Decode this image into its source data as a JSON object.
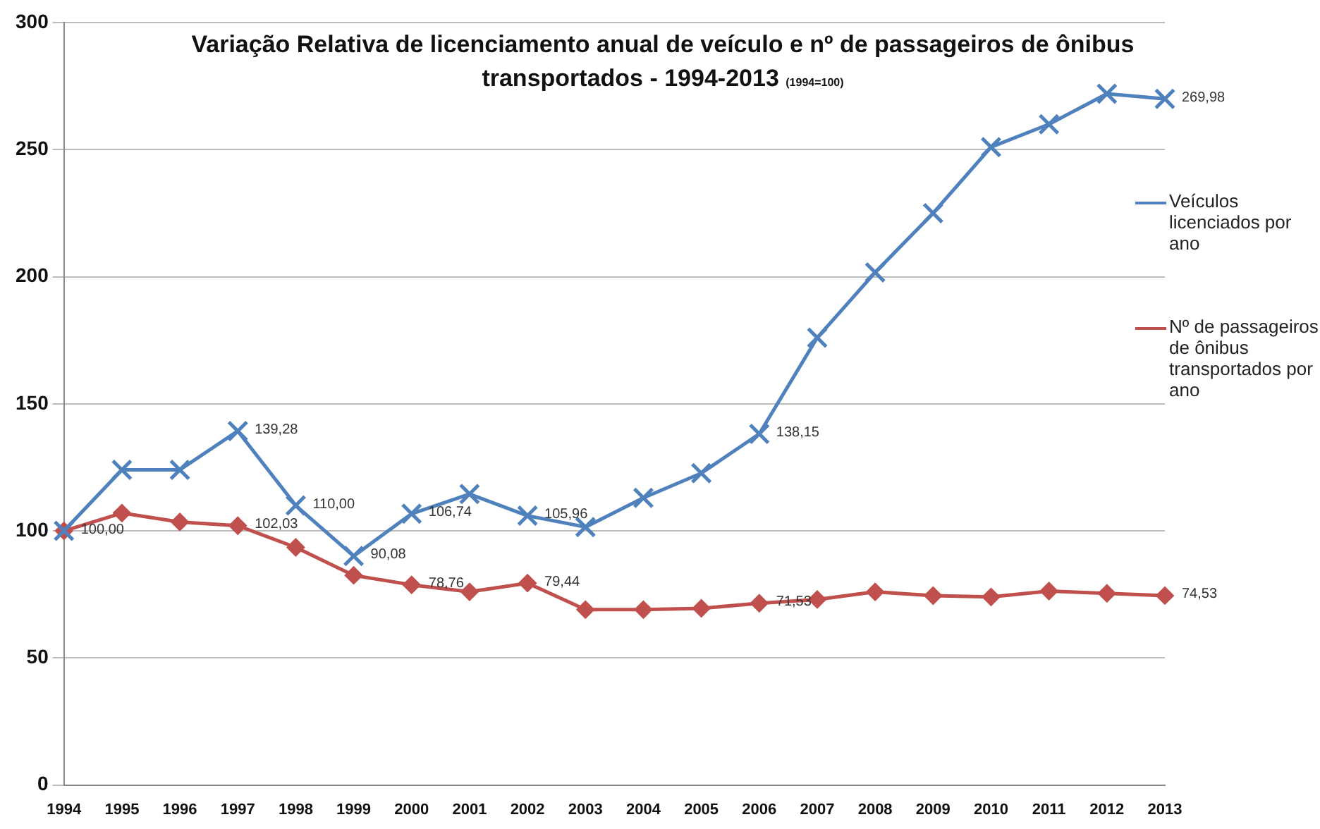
{
  "chart_data": {
    "type": "line",
    "title": "Variação Relativa de licenciamento anual de veículo e nº de passageiros de ônibus transportados - 1994-2013",
    "subtitle": "(1994=100)",
    "categories": [
      "1994",
      "1995",
      "1996",
      "1997",
      "1998",
      "1999",
      "2000",
      "2001",
      "2002",
      "2003",
      "2004",
      "2005",
      "2006",
      "2007",
      "2008",
      "2009",
      "2010",
      "2011",
      "2012",
      "2013"
    ],
    "series": [
      {
        "name": "Veículos licenciados por ano",
        "color": "#4f81bd",
        "marker": "cross",
        "values": [
          100,
          124,
          124,
          139.28,
          110,
          90.08,
          106.74,
          114.5,
          105.96,
          101.5,
          113,
          122.7,
          138.15,
          176,
          201.7,
          225,
          251,
          260,
          272,
          269.98
        ],
        "value_labels": [
          "100,00",
          null,
          null,
          "139,28",
          "110,00",
          "90,08",
          "106,74",
          null,
          "105,96",
          null,
          null,
          null,
          "138,15",
          null,
          null,
          null,
          null,
          null,
          null,
          "269,98"
        ]
      },
      {
        "name": "Nº de passageiros de ônibus transportados por ano",
        "color": "#c0504d",
        "marker": "diamond",
        "values": [
          100,
          107,
          103.5,
          102.03,
          93.5,
          82.5,
          78.76,
          76,
          79.44,
          69,
          69,
          69.5,
          71.53,
          73,
          76,
          74.5,
          74,
          76.3,
          75.4,
          74.53
        ],
        "value_labels": [
          null,
          null,
          null,
          "102,03",
          null,
          null,
          "78,76",
          null,
          "79,44",
          null,
          null,
          null,
          "71,53",
          null,
          null,
          null,
          null,
          null,
          null,
          "74,53"
        ]
      }
    ],
    "ylim": [
      0,
      300
    ],
    "yticks": [
      0,
      50,
      100,
      150,
      200,
      250,
      300
    ],
    "grid": "y",
    "legend": "right",
    "line_style": "solid"
  }
}
